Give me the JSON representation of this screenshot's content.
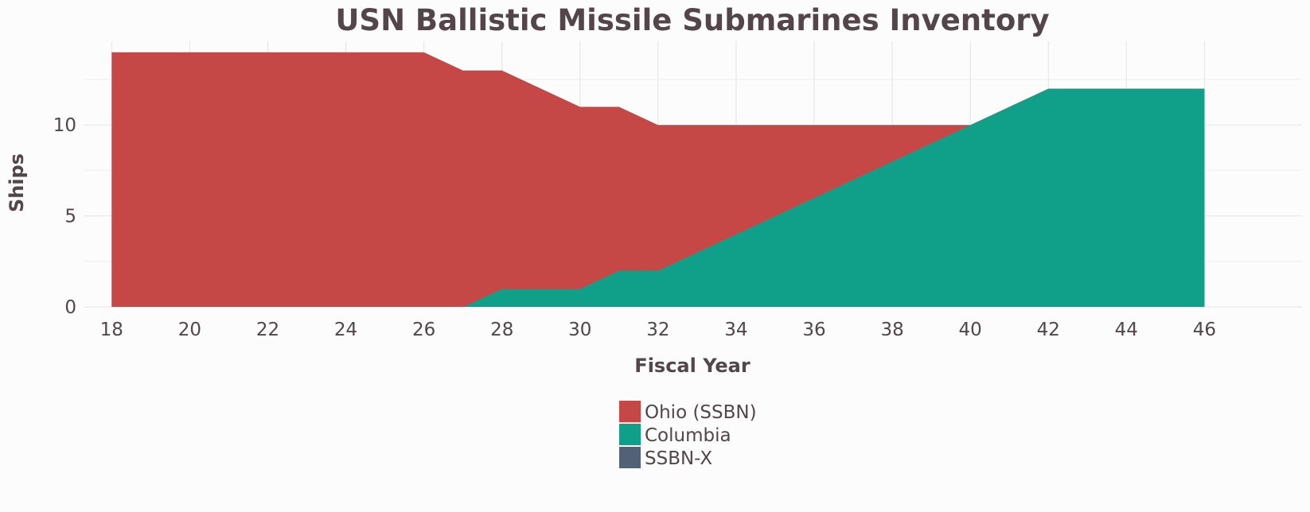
{
  "chart_data": {
    "type": "area",
    "title": "USN Ballistic Missile Submarines Inventory",
    "xlabel": "Fiscal Year",
    "ylabel": "Ships",
    "xlim": [
      17.3,
      48.5
    ],
    "ylim": [
      0,
      14.6
    ],
    "x_ticks": [
      18,
      20,
      22,
      24,
      26,
      28,
      30,
      32,
      34,
      36,
      38,
      40,
      42,
      44,
      46
    ],
    "x_tick_labels": [
      "18",
      "20",
      "22",
      "24",
      "26",
      "28",
      "30",
      "32",
      "34",
      "36",
      "38",
      "40",
      "42",
      "44",
      "46"
    ],
    "y_ticks": [
      0,
      5,
      10
    ],
    "y_tick_labels": [
      "0",
      "5",
      "10"
    ],
    "grid": true,
    "stacking": "overlap",
    "legend_position": "bottom",
    "series": [
      {
        "name": "Ohio (SSBN)",
        "color": "#c64846",
        "x": [
          18,
          19,
          20,
          21,
          22,
          23,
          24,
          25,
          26,
          27,
          28,
          29,
          30,
          31,
          32,
          33,
          34,
          35,
          36,
          37,
          38,
          39,
          40
        ],
        "values": [
          14,
          14,
          14,
          14,
          14,
          14,
          14,
          14,
          14,
          13,
          13,
          12,
          11,
          11,
          10,
          10,
          10,
          10,
          10,
          10,
          10,
          10,
          10
        ]
      },
      {
        "name": "Columbia",
        "color": "#109f89",
        "x": [
          27,
          28,
          29,
          30,
          31,
          32,
          33,
          34,
          35,
          36,
          37,
          38,
          39,
          40,
          41,
          42,
          43,
          44,
          45,
          46
        ],
        "values": [
          0,
          1,
          1,
          1,
          2,
          2,
          3,
          4,
          5,
          6,
          7,
          8,
          9,
          10,
          11,
          12,
          12,
          12,
          12,
          12
        ]
      },
      {
        "name": "SSBN-X",
        "color": "#536176",
        "x": [],
        "values": []
      }
    ]
  }
}
